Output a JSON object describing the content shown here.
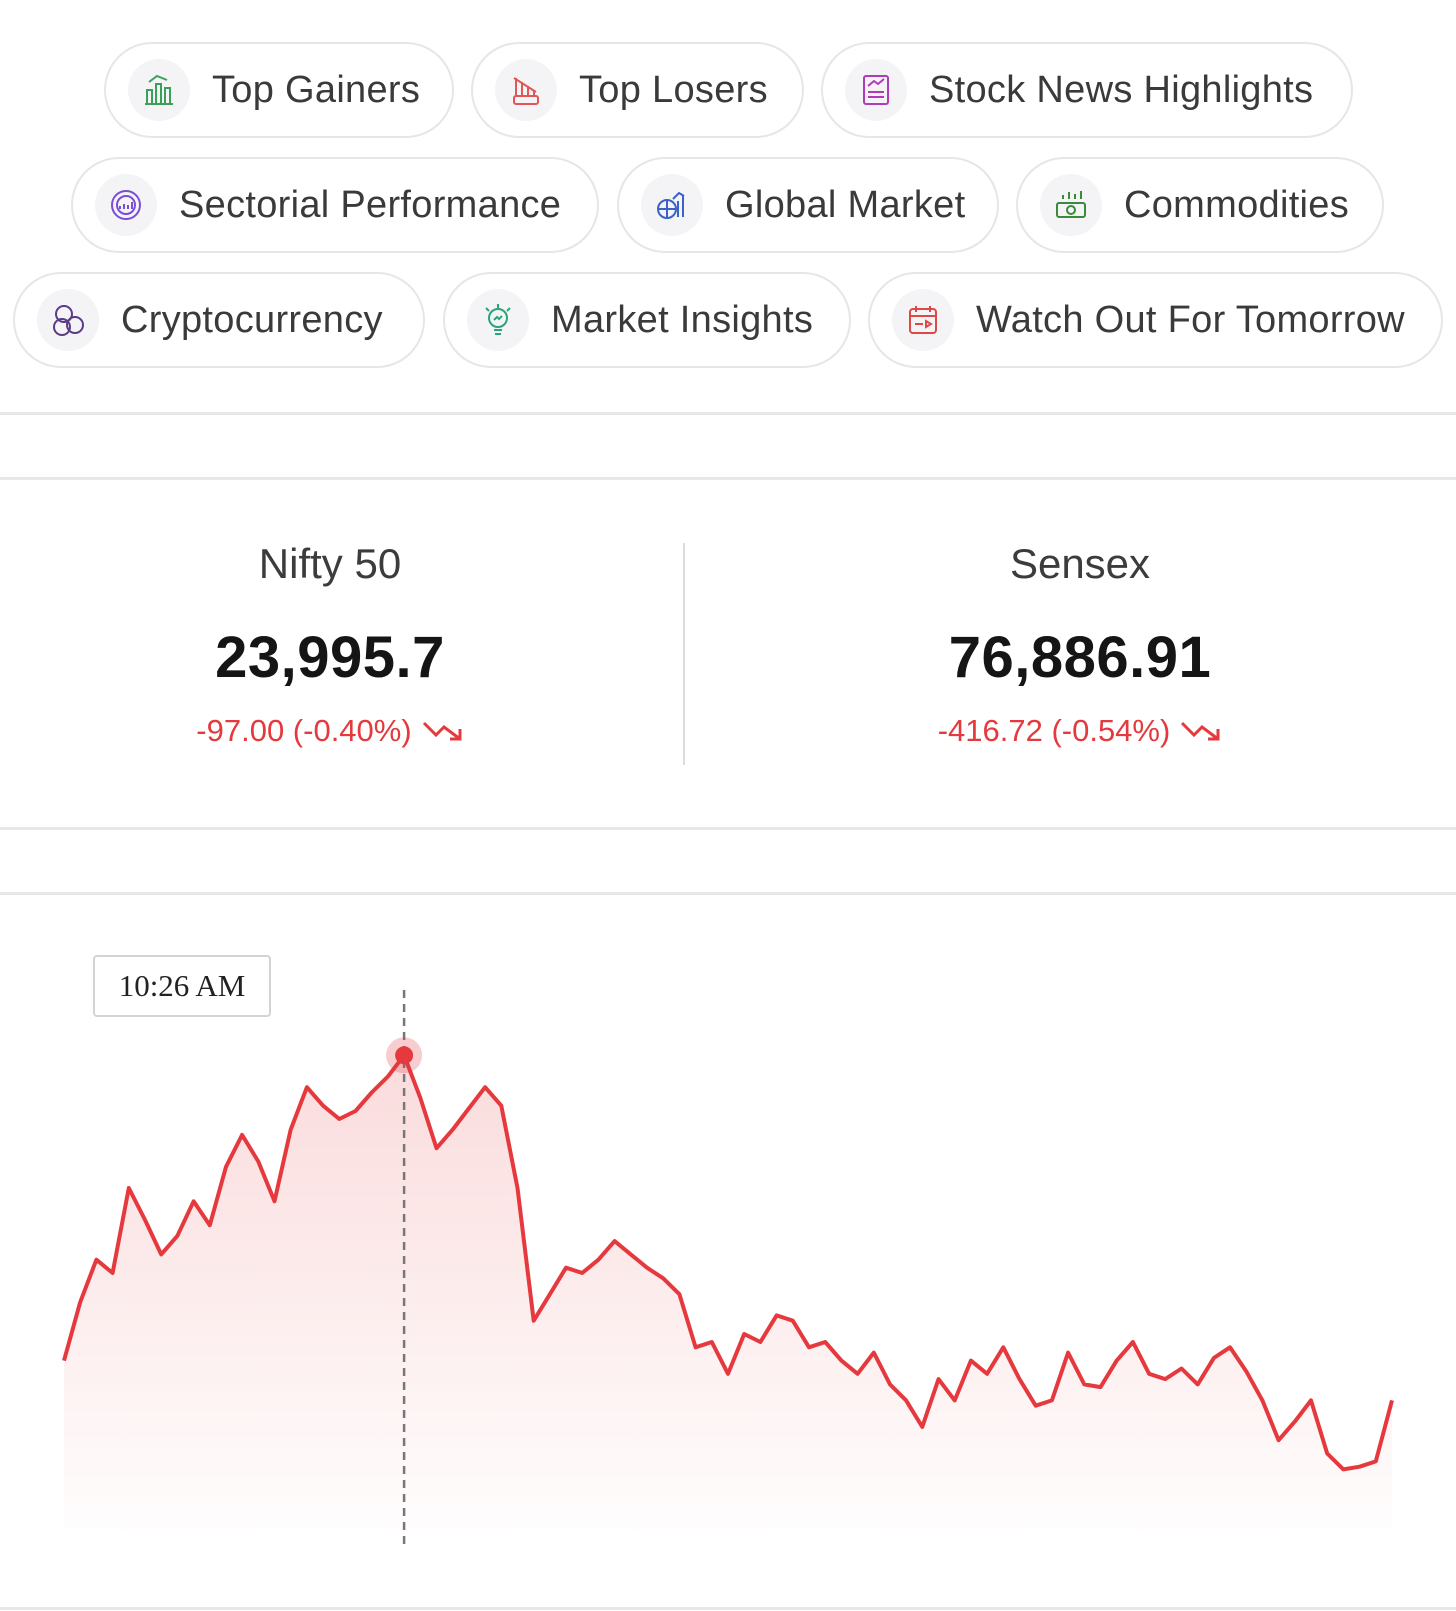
{
  "chips": [
    {
      "label": "Top Gainers",
      "icon": "top-gainers-icon",
      "color": "#3aa05a"
    },
    {
      "label": "Top Losers",
      "icon": "top-losers-icon",
      "color": "#e35656"
    },
    {
      "label": "Stock News Highlights",
      "icon": "stock-news-icon",
      "color": "#b03ab8"
    },
    {
      "label": "Sectorial Performance",
      "icon": "sectorial-performance-icon",
      "color": "#7a4fd6"
    },
    {
      "label": "Global Market",
      "icon": "global-market-icon",
      "color": "#3b62c9"
    },
    {
      "label": "Commodities",
      "icon": "commodities-icon",
      "color": "#3a8a3a"
    },
    {
      "label": "Cryptocurrency",
      "icon": "cryptocurrency-icon",
      "color": "#5b3a8a"
    },
    {
      "label": "Market Insights",
      "icon": "market-insights-icon",
      "color": "#2aa57a"
    },
    {
      "label": "Watch Out For Tomorrow",
      "icon": "calendar-icon",
      "color": "#e04848"
    }
  ],
  "indices": [
    {
      "name": "Nifty 50",
      "value": "23,995.7",
      "change": "-97.00 (-0.40%)"
    },
    {
      "name": "Sensex",
      "value": "76,886.91",
      "change": "-416.72 (-0.54%)"
    }
  ],
  "colors": {
    "negative": "#e5393e",
    "chip_border": "#e6e6e6"
  },
  "chart_data": {
    "type": "line",
    "tooltip": "10:26 AM",
    "values": [
      24045,
      24067,
      24083,
      24078,
      24110,
      24098,
      24085,
      24092,
      24105,
      24096,
      24118,
      24130,
      24120,
      24105,
      24132,
      24148,
      24141,
      24136,
      24139,
      24146,
      24152,
      24160,
      24144,
      24125,
      24132,
      24140,
      24148,
      24141,
      24110,
      24060,
      24070,
      24080,
      24078,
      24083,
      24090,
      24085,
      24080,
      24076,
      24070,
      24050,
      24052,
      24040,
      24055,
      24052,
      24062,
      24060,
      24050,
      24052,
      24045,
      24040,
      24048,
      24036,
      24030,
      24020,
      24038,
      24030,
      24045,
      24040,
      24050,
      24038,
      24028,
      24030,
      24048,
      24036,
      24035,
      24045,
      24052,
      24040,
      24038,
      24042,
      24036,
      24046,
      24050,
      24041,
      24030,
      24015,
      24022,
      24030,
      24010,
      24004,
      24005,
      24007,
      24030
    ]
  }
}
